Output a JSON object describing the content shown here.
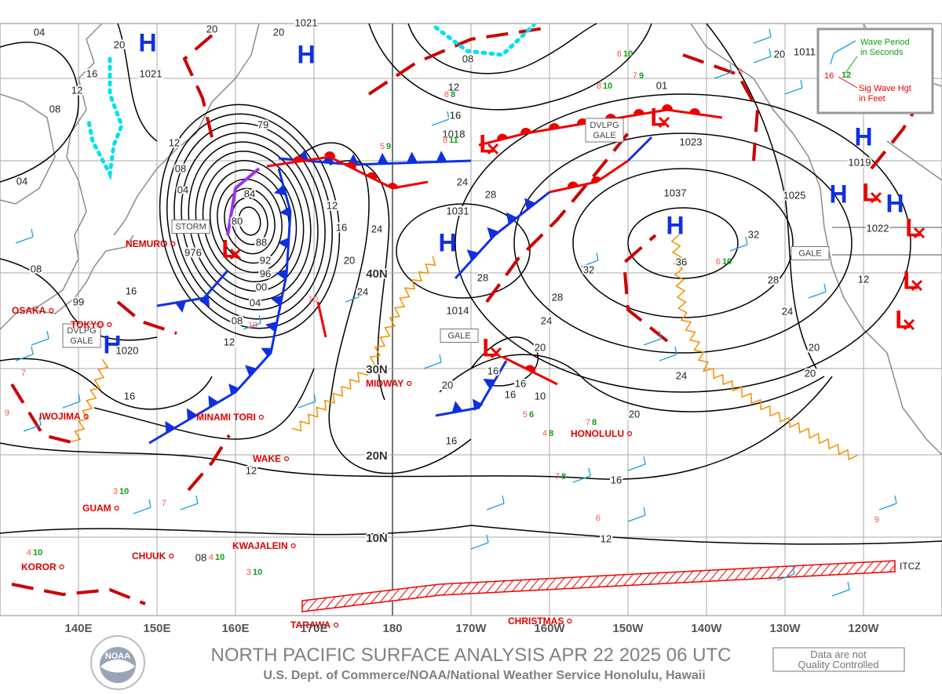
{
  "header": {
    "title": "NORTH PACIFIC SURFACE ANALYSIS APR 22 2025 06 UTC",
    "subtitle": "U.S. Dept. of Commerce/NOAA/National Weather Service Honolulu, Hawaii",
    "disclaimer": [
      "Data are not",
      "Quality Controlled"
    ],
    "logo": "NOAA"
  },
  "legend": {
    "period_text": [
      "Wave Period",
      "in Seconds"
    ],
    "height_text": [
      "Sig Wave Hgt",
      "in Feet"
    ],
    "period_sample": "12",
    "height_sample": "16"
  },
  "map": {
    "longitudes": [
      "140E",
      "150E",
      "160E",
      "170E",
      "180",
      "170W",
      "160W",
      "150W",
      "140W",
      "130W",
      "120W"
    ],
    "latitudes": [
      "40N",
      "30N",
      "20N",
      "10N"
    ],
    "stations": [
      "NEMURO",
      "OSAKA",
      "TOKYO",
      "IWOJIMA",
      "MINAMI TORI",
      "WAKE",
      "MIDWAY",
      "GUAM",
      "CHUUK",
      "KWAJALEIN",
      "KOROR",
      "TARAWA",
      "CHRISTMAS",
      "HONOLULU"
    ],
    "centers": [
      {
        "symbol": "H",
        "pressure": "1021"
      },
      {
        "symbol": "H",
        "pressure": "1021"
      },
      {
        "symbol": "L",
        "pressure": "976"
      },
      {
        "symbol": "H",
        "pressure": "1020"
      },
      {
        "symbol": "H",
        "pressure": "1031"
      },
      {
        "symbol": "L",
        "pressure": "1014"
      },
      {
        "symbol": "H",
        "pressure": "1037"
      },
      {
        "symbol": "L",
        "pressure": "1023"
      },
      {
        "symbol": "L",
        "pressure": "1018"
      },
      {
        "symbol": "H",
        "pressure": "1019"
      },
      {
        "symbol": "H",
        "pressure": "1025"
      },
      {
        "symbol": "H",
        "pressure": "1022"
      },
      {
        "symbol": "L"
      },
      {
        "symbol": "L"
      },
      {
        "symbol": "L"
      },
      {
        "symbol": "L"
      }
    ],
    "areas": [
      {
        "lines": [
          "STORM"
        ]
      },
      {
        "lines": [
          "DVLPG",
          "GALE"
        ]
      },
      {
        "lines": [
          "GALE"
        ]
      },
      {
        "lines": [
          "DVLPG",
          "GALE"
        ]
      },
      {
        "lines": [
          "GALE"
        ]
      }
    ],
    "isobar_labels": [
      "04",
      "20",
      "20",
      "20",
      "16",
      "12",
      "08",
      "12",
      "08",
      "04",
      "04",
      "79",
      "84",
      "80",
      "88",
      "92",
      "96",
      "00",
      "04",
      "08",
      "12",
      "16",
      "16",
      "08",
      "99",
      "12",
      "16",
      "20",
      "24",
      "24",
      "24",
      "28",
      "28",
      "20",
      "16",
      "16",
      "16",
      "10",
      "20",
      "24",
      "28",
      "32",
      "32",
      "36",
      "28",
      "24",
      "20",
      "20",
      "24",
      "20",
      "16",
      "16",
      "12",
      "12",
      "08",
      "08",
      "12",
      "16",
      "01",
      "20",
      "1011",
      "12"
    ],
    "itcz": "ITCZ",
    "wave_obs": [
      {
        "height": "8",
        "period": "8"
      },
      {
        "height": "6",
        "period": "10"
      },
      {
        "height": "7",
        "period": "9"
      },
      {
        "height": "8",
        "period": "10"
      },
      {
        "height": "5",
        "period": "9"
      },
      {
        "height": "8",
        "period": "11"
      },
      {
        "height": "5",
        "period": "6"
      },
      {
        "height": "7",
        "period": "8"
      },
      {
        "height": "4",
        "period": "8"
      },
      {
        "height": "7",
        "period": "8"
      },
      {
        "height": "3",
        "period": "10"
      },
      {
        "height": "4",
        "period": "10"
      },
      {
        "height": "4",
        "period": "10"
      },
      {
        "height": "3",
        "period": "10"
      },
      {
        "height": "6",
        "period": "10"
      },
      {
        "height": "10"
      },
      {
        "height": "10"
      },
      {
        "height": "7"
      },
      {
        "height": "9"
      },
      {
        "height": "7"
      },
      {
        "height": "6"
      },
      {
        "height": "9"
      },
      {
        "height": "6"
      }
    ]
  }
}
